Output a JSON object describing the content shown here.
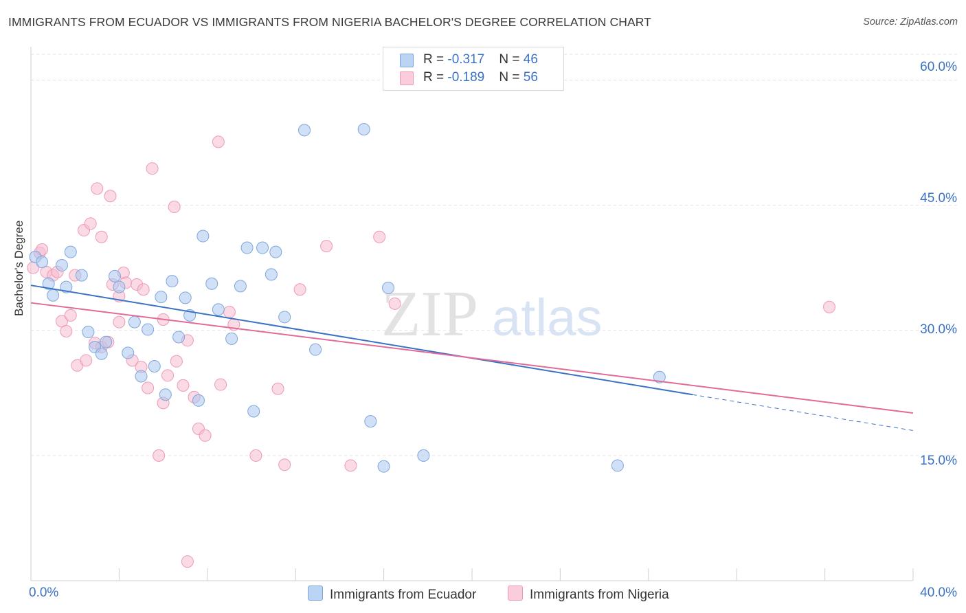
{
  "title": "IMMIGRANTS FROM ECUADOR VS IMMIGRANTS FROM NIGERIA BACHELOR'S DEGREE CORRELATION CHART",
  "source": "Source: ZipAtlas.com",
  "watermark": {
    "zip": "ZIP",
    "atlas": "atlas"
  },
  "legend_top": [
    {
      "r_label": "R = ",
      "r_value": "-0.317",
      "n_label": "N = ",
      "n_value": "46"
    },
    {
      "r_label": "R = ",
      "r_value": "-0.189",
      "n_label": "N = ",
      "n_value": "56"
    }
  ],
  "colors": {
    "ecuador": "#a9c7ef",
    "ecuador_stroke": "#7fa6dc",
    "ecuador_line": "#3b72c4",
    "nigeria": "#f6bcd0",
    "nigeria_stroke": "#ee9ab6",
    "nigeria_line": "#e06b98",
    "tick_text": "#3b72c4"
  },
  "chart_data": {
    "type": "scatter",
    "title": "IMMIGRANTS FROM ECUADOR VS IMMIGRANTS FROM NIGERIA BACHELOR'S DEGREE CORRELATION CHART",
    "xlabel": "",
    "ylabel": "Bachelor's Degree",
    "xlim": [
      0,
      40
    ],
    "ylim": [
      0,
      63.5
    ],
    "x_tick_labels": [
      "0.0%",
      "40.0%"
    ],
    "y_ticks": [
      15,
      30,
      45,
      60
    ],
    "y_tick_labels": [
      "15.0%",
      "30.0%",
      "45.0%",
      "60.0%"
    ],
    "grid": true,
    "legend_position": "top-center",
    "series": [
      {
        "name": "Immigrants from Ecuador",
        "r": -0.317,
        "n": 46,
        "trend": {
          "x_start": 0,
          "y_start": 35.4,
          "x_end": 30,
          "y_end": 22.3,
          "dashed_to_x": 40,
          "dashed_to_y": 18.0
        },
        "points": [
          [
            0.2,
            38.8
          ],
          [
            0.5,
            38.2
          ],
          [
            0.8,
            35.6
          ],
          [
            1.0,
            34.2
          ],
          [
            1.4,
            37.8
          ],
          [
            1.6,
            35.2
          ],
          [
            1.8,
            39.4
          ],
          [
            2.3,
            36.6
          ],
          [
            2.6,
            29.8
          ],
          [
            2.9,
            28.0
          ],
          [
            3.2,
            27.2
          ],
          [
            3.4,
            28.6
          ],
          [
            3.8,
            36.5
          ],
          [
            4.0,
            35.2
          ],
          [
            4.4,
            27.3
          ],
          [
            4.7,
            31.0
          ],
          [
            5.0,
            24.5
          ],
          [
            5.3,
            30.1
          ],
          [
            5.6,
            25.7
          ],
          [
            5.9,
            34.0
          ],
          [
            6.1,
            22.3
          ],
          [
            6.4,
            35.9
          ],
          [
            6.7,
            29.2
          ],
          [
            7.0,
            33.9
          ],
          [
            7.2,
            31.8
          ],
          [
            7.6,
            21.6
          ],
          [
            7.8,
            41.3
          ],
          [
            8.2,
            35.6
          ],
          [
            8.5,
            32.5
          ],
          [
            9.1,
            29.0
          ],
          [
            9.5,
            35.3
          ],
          [
            9.8,
            39.9
          ],
          [
            10.1,
            20.3
          ],
          [
            10.5,
            39.9
          ],
          [
            10.9,
            36.7
          ],
          [
            11.1,
            39.4
          ],
          [
            11.5,
            31.6
          ],
          [
            12.4,
            54.0
          ],
          [
            12.9,
            27.7
          ],
          [
            15.1,
            54.1
          ],
          [
            15.4,
            19.1
          ],
          [
            16.0,
            13.7
          ],
          [
            16.2,
            35.1
          ],
          [
            17.8,
            15.0
          ],
          [
            26.6,
            13.8
          ],
          [
            28.5,
            24.4
          ]
        ]
      },
      {
        "name": "Immigrants from Nigeria",
        "r": -0.189,
        "n": 56,
        "trend": {
          "x_start": 0,
          "y_start": 33.3,
          "x_end": 40,
          "y_end": 20.1
        },
        "points": [
          [
            0.1,
            37.5
          ],
          [
            0.4,
            39.3
          ],
          [
            0.5,
            39.7
          ],
          [
            0.7,
            37.0
          ],
          [
            1.0,
            36.6
          ],
          [
            1.2,
            37.0
          ],
          [
            1.4,
            31.1
          ],
          [
            1.6,
            29.9
          ],
          [
            1.8,
            31.8
          ],
          [
            2.0,
            36.6
          ],
          [
            2.1,
            25.8
          ],
          [
            2.4,
            42.0
          ],
          [
            2.5,
            26.4
          ],
          [
            2.7,
            42.8
          ],
          [
            2.9,
            28.5
          ],
          [
            3.0,
            47.0
          ],
          [
            3.2,
            28.0
          ],
          [
            3.2,
            41.2
          ],
          [
            3.5,
            28.6
          ],
          [
            3.6,
            46.1
          ],
          [
            3.7,
            35.5
          ],
          [
            4.0,
            34.1
          ],
          [
            4.0,
            31.0
          ],
          [
            4.2,
            36.9
          ],
          [
            4.3,
            35.7
          ],
          [
            4.6,
            26.4
          ],
          [
            4.8,
            35.5
          ],
          [
            5.0,
            25.6
          ],
          [
            5.1,
            34.9
          ],
          [
            5.3,
            23.1
          ],
          [
            5.5,
            49.4
          ],
          [
            5.8,
            15.0
          ],
          [
            6.0,
            31.3
          ],
          [
            6.0,
            21.3
          ],
          [
            6.2,
            24.6
          ],
          [
            6.5,
            44.8
          ],
          [
            6.6,
            26.3
          ],
          [
            6.9,
            23.4
          ],
          [
            7.1,
            2.3
          ],
          [
            7.1,
            28.8
          ],
          [
            7.4,
            22.0
          ],
          [
            7.6,
            18.2
          ],
          [
            7.9,
            17.4
          ],
          [
            8.5,
            52.6
          ],
          [
            8.6,
            23.5
          ],
          [
            9.0,
            32.2
          ],
          [
            9.2,
            30.7
          ],
          [
            10.2,
            15.0
          ],
          [
            11.2,
            23.0
          ],
          [
            11.5,
            13.9
          ],
          [
            12.2,
            34.9
          ],
          [
            13.4,
            40.1
          ],
          [
            14.5,
            13.8
          ],
          [
            15.8,
            41.2
          ],
          [
            16.5,
            33.2
          ],
          [
            36.2,
            32.8
          ]
        ]
      }
    ]
  },
  "bottom_legend": [
    {
      "label": "Immigrants from Ecuador"
    },
    {
      "label": "Immigrants from Nigeria"
    }
  ]
}
